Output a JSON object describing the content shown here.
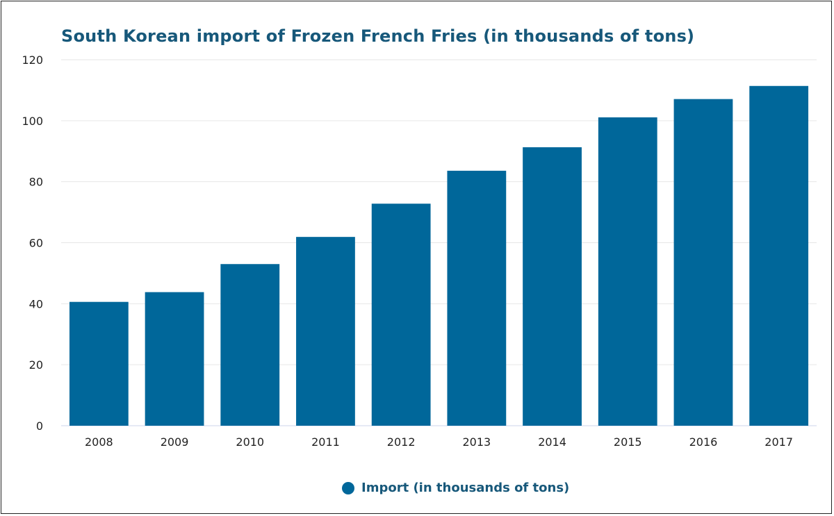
{
  "chart_data": {
    "type": "bar",
    "title": "South Korean import of Frozen French Fries (in thousands of tons)",
    "categories": [
      "2008",
      "2009",
      "2010",
      "2011",
      "2012",
      "2013",
      "2014",
      "2015",
      "2016",
      "2017"
    ],
    "series": [
      {
        "name": "Import (in thousands of tons)",
        "values": [
          40.6,
          43.8,
          53.0,
          61.9,
          72.8,
          83.6,
          91.3,
          101.1,
          107.1,
          111.4
        ],
        "color": "#00679a"
      }
    ],
    "ylim": [
      0,
      120
    ],
    "yticks": [
      0,
      20,
      40,
      60,
      80,
      100,
      120
    ],
    "grid": true,
    "legend_position": "bottom",
    "xlabel": "",
    "ylabel": ""
  }
}
